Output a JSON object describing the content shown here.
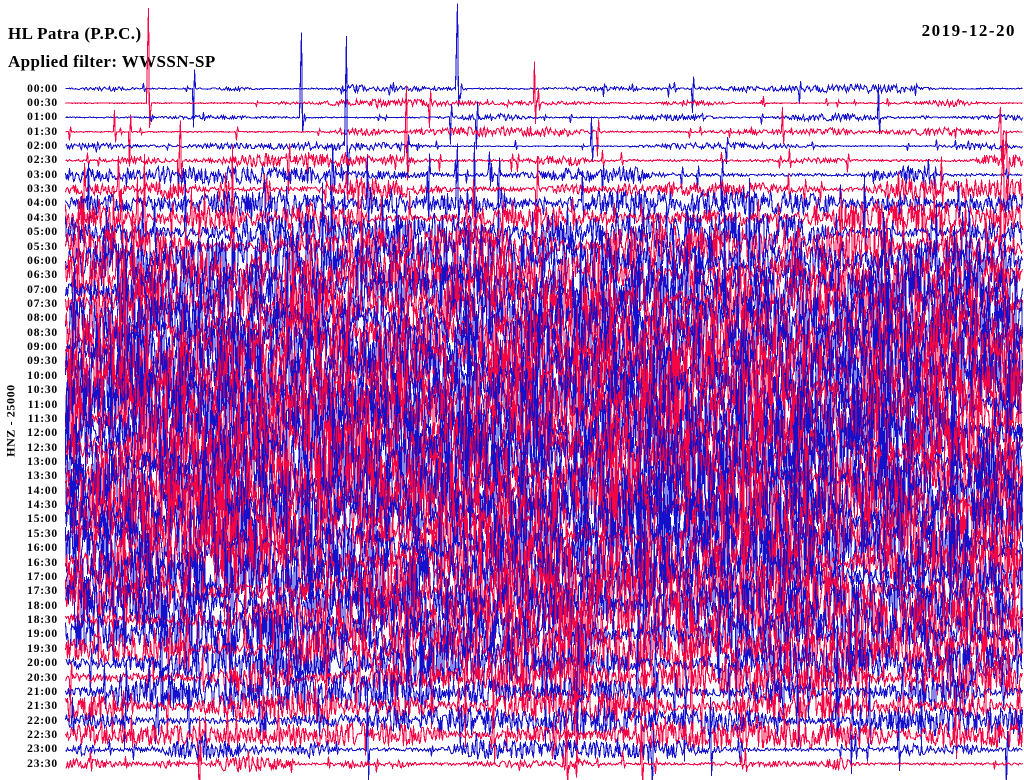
{
  "header": {
    "station_title": "HL Patra (P.P.C.)",
    "filter_label": "Applied filter: WWSSN-SP",
    "date": "2019-12-20"
  },
  "left_axis": {
    "channel_label": "HNZ - 25000"
  },
  "colors": {
    "hour_trace": "#1410CB",
    "half_hour_trace": "#F40645",
    "text": "#000000",
    "background": "#FFFFFF"
  },
  "chart_data": {
    "type": "line",
    "subtype": "helicorder-seismogram",
    "title": "HL Patra (P.P.C.)",
    "station": "Patra (P.P.C.)",
    "network": "HL",
    "channel": "HNZ",
    "scale": 25000,
    "filter": "WWSSN-SP",
    "date": "2019-12-20",
    "minutes_per_row": 30,
    "row_order": "top-to-bottom",
    "legend_position": "none",
    "grid": false,
    "trace_colors_alternate": [
      "#1410CB",
      "#F40645"
    ],
    "rows": [
      {
        "t": "00:00",
        "amp": 2.2,
        "burst": 0.2,
        "spikes": 3
      },
      {
        "t": "00:30",
        "amp": 1.7,
        "burst": 0.15,
        "spikes": 3
      },
      {
        "t": "01:00",
        "amp": 1.7,
        "burst": 0.15,
        "spikes": 3
      },
      {
        "t": "01:30",
        "amp": 2.2,
        "burst": 0.2,
        "spikes": 4
      },
      {
        "t": "02:00",
        "amp": 1.8,
        "burst": 0.18,
        "spikes": 3
      },
      {
        "t": "02:30",
        "amp": 3.2,
        "burst": 0.3,
        "spikes": 4
      },
      {
        "t": "03:00",
        "amp": 4.2,
        "burst": 0.38,
        "spikes": 5
      },
      {
        "t": "03:30",
        "amp": 5.2,
        "burst": 0.45,
        "spikes": 6
      },
      {
        "t": "04:00",
        "amp": 6.0,
        "burst": 0.5,
        "spikes": 6
      },
      {
        "t": "04:30",
        "amp": 7.5,
        "burst": 0.55,
        "spikes": 7
      },
      {
        "t": "05:00",
        "amp": 9.0,
        "burst": 0.62,
        "spikes": 7
      },
      {
        "t": "05:30",
        "amp": 10.0,
        "burst": 0.66,
        "spikes": 8
      },
      {
        "t": "06:00",
        "amp": 11.0,
        "burst": 0.7,
        "spikes": 8
      },
      {
        "t": "06:30",
        "amp": 11.5,
        "burst": 0.72,
        "spikes": 8
      },
      {
        "t": "07:00",
        "amp": 12.0,
        "burst": 0.75,
        "spikes": 9
      },
      {
        "t": "07:30",
        "amp": 12.5,
        "burst": 0.76,
        "spikes": 9
      },
      {
        "t": "08:00",
        "amp": 13.0,
        "burst": 0.8,
        "spikes": 9
      },
      {
        "t": "08:30",
        "amp": 13.5,
        "burst": 0.8,
        "spikes": 9
      },
      {
        "t": "09:00",
        "amp": 14.0,
        "burst": 0.84,
        "spikes": 10
      },
      {
        "t": "09:30",
        "amp": 14.5,
        "burst": 0.85,
        "spikes": 10
      },
      {
        "t": "10:00",
        "amp": 15.0,
        "burst": 0.86,
        "spikes": 10
      },
      {
        "t": "10:30",
        "amp": 15.5,
        "burst": 0.86,
        "spikes": 10
      },
      {
        "t": "11:00",
        "amp": 15.5,
        "burst": 0.86,
        "spikes": 10
      },
      {
        "t": "11:30",
        "amp": 16.0,
        "burst": 0.87,
        "spikes": 10
      },
      {
        "t": "12:00",
        "amp": 16.0,
        "burst": 0.87,
        "spikes": 10
      },
      {
        "t": "12:30",
        "amp": 16.0,
        "burst": 0.87,
        "spikes": 10
      },
      {
        "t": "13:00",
        "amp": 16.0,
        "burst": 0.87,
        "spikes": 10
      },
      {
        "t": "13:30",
        "amp": 16.0,
        "burst": 0.87,
        "spikes": 10
      },
      {
        "t": "14:00",
        "amp": 16.0,
        "burst": 0.86,
        "spikes": 10
      },
      {
        "t": "14:30",
        "amp": 15.5,
        "burst": 0.86,
        "spikes": 10
      },
      {
        "t": "15:00",
        "amp": 15.5,
        "burst": 0.86,
        "spikes": 10
      },
      {
        "t": "15:30",
        "amp": 15.0,
        "burst": 0.85,
        "spikes": 10
      },
      {
        "t": "16:00",
        "amp": 14.5,
        "burst": 0.84,
        "spikes": 9
      },
      {
        "t": "16:30",
        "amp": 14.0,
        "burst": 0.83,
        "spikes": 9
      },
      {
        "t": "17:00",
        "amp": 13.5,
        "burst": 0.82,
        "spikes": 9
      },
      {
        "t": "17:30",
        "amp": 13.0,
        "burst": 0.8,
        "spikes": 9
      },
      {
        "t": "18:00",
        "amp": 12.5,
        "burst": 0.78,
        "spikes": 9
      },
      {
        "t": "18:30",
        "amp": 12.0,
        "burst": 0.76,
        "spikes": 8
      },
      {
        "t": "19:00",
        "amp": 11.5,
        "burst": 0.74,
        "spikes": 8
      },
      {
        "t": "19:30",
        "amp": 10.5,
        "burst": 0.7,
        "spikes": 8
      },
      {
        "t": "20:00",
        "amp": 10.0,
        "burst": 0.68,
        "spikes": 7
      },
      {
        "t": "20:30",
        "amp": 9.5,
        "burst": 0.64,
        "spikes": 7
      },
      {
        "t": "21:00",
        "amp": 8.5,
        "burst": 0.6,
        "spikes": 7
      },
      {
        "t": "21:30",
        "amp": 7.5,
        "burst": 0.55,
        "spikes": 6
      },
      {
        "t": "22:00",
        "amp": 7.0,
        "burst": 0.5,
        "spikes": 6
      },
      {
        "t": "22:30",
        "amp": 6.5,
        "burst": 0.48,
        "spikes": 5
      },
      {
        "t": "23:00",
        "amp": 4.5,
        "burst": 0.4,
        "spikes": 5
      },
      {
        "t": "23:30",
        "amp": 3.5,
        "burst": 0.32,
        "spikes": 4
      }
    ],
    "events": [
      {
        "row": 0,
        "m": 12.3,
        "up": 85,
        "down": 18
      },
      {
        "row": 1,
        "m": 2.6,
        "up": 95,
        "down": 25
      },
      {
        "row": 2,
        "m": 7.4,
        "up": 85,
        "down": 15
      },
      {
        "row": 3,
        "m": 29.3,
        "up": 25,
        "down": 30
      },
      {
        "row": 4,
        "m": 8.8,
        "up": 110,
        "down": 45
      },
      {
        "row": 5,
        "m": 10.7,
        "up": 75,
        "down": 20
      },
      {
        "row": 5,
        "m": 29.5,
        "up": 30,
        "down": 45
      },
      {
        "row": 7,
        "m": 29.4,
        "up": 50,
        "down": 70
      },
      {
        "row": 8,
        "m": 12.3,
        "up": 60,
        "down": 20
      }
    ]
  }
}
